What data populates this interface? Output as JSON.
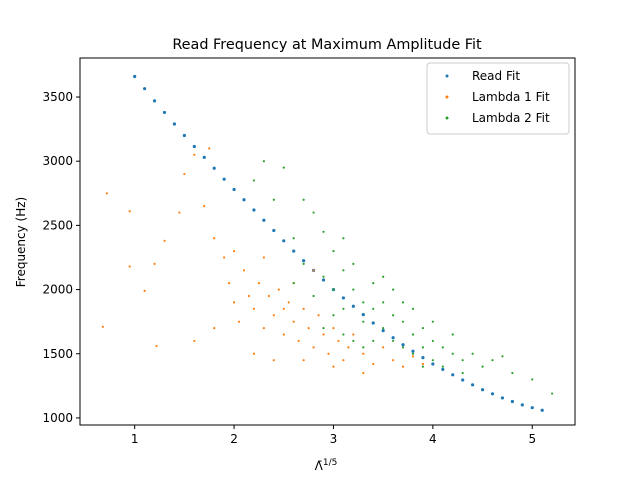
{
  "chart_data": {
    "type": "scatter",
    "title": "Read Frequency at Maximum Amplitude Fit",
    "x_label": "Λ̄",
    "x_label_superscript": "1/5",
    "y_label": "Frequency (Hz)",
    "xlim": [
      0.45,
      5.43
    ],
    "ylim": [
      945,
      3804
    ],
    "xticks": [
      1,
      2,
      3,
      4,
      5
    ],
    "yticks": [
      1000,
      1500,
      2000,
      2500,
      3000,
      3500
    ],
    "legend": "upper right",
    "series": [
      {
        "name": "Read Fit",
        "color": "#1f77b4",
        "x": [
          1.0,
          1.1,
          1.2,
          1.3,
          1.4,
          1.5,
          1.6,
          1.7,
          1.8,
          1.9,
          2.0,
          2.1,
          2.2,
          2.3,
          2.4,
          2.5,
          2.6,
          2.7,
          2.8,
          2.9,
          3.0,
          3.1,
          3.2,
          3.3,
          3.4,
          3.5,
          3.6,
          3.7,
          3.8,
          3.9,
          4.0,
          4.1,
          4.2,
          4.3,
          4.4,
          4.5,
          4.6,
          4.7,
          4.8,
          4.9,
          5.0,
          5.1
        ],
        "values": [
          3660,
          3565,
          3470,
          3380,
          3290,
          3200,
          3115,
          3030,
          2945,
          2860,
          2780,
          2700,
          2620,
          2540,
          2460,
          2380,
          2300,
          2225,
          2150,
          2075,
          2000,
          1935,
          1870,
          1805,
          1740,
          1680,
          1625,
          1570,
          1520,
          1470,
          1420,
          1378,
          1336,
          1296,
          1258,
          1220,
          1188,
          1156,
          1128,
          1102,
          1080,
          1060
        ]
      },
      {
        "name": "Lambda 1 Fit",
        "color": "#ff7f0e",
        "x": [
          0.68,
          0.72,
          0.95,
          0.95,
          1.1,
          1.2,
          1.22,
          1.3,
          1.45,
          1.5,
          1.6,
          1.75,
          1.7,
          1.8,
          1.9,
          1.95,
          2.0,
          2.05,
          2.1,
          2.15,
          2.2,
          2.25,
          2.3,
          2.35,
          2.4,
          2.45,
          2.5,
          2.5,
          2.55,
          2.6,
          2.6,
          2.65,
          2.7,
          2.75,
          2.8,
          2.85,
          2.9,
          2.95,
          3.0,
          3.05,
          3.1,
          3.15,
          3.2,
          3.3,
          3.4,
          3.5,
          3.6,
          3.7,
          3.8,
          3.9,
          2.2,
          2.4,
          2.0,
          1.6,
          2.8,
          3.0,
          2.3,
          1.8,
          2.7,
          3.3
        ],
        "values": [
          1710,
          2750,
          2610,
          2180,
          1990,
          2200,
          1560,
          2380,
          2600,
          2900,
          3050,
          3100,
          2650,
          2400,
          2250,
          2050,
          1900,
          1750,
          2150,
          1950,
          1850,
          2050,
          1700,
          1950,
          1800,
          2000,
          1850,
          1650,
          1900,
          1750,
          2050,
          1600,
          1850,
          1700,
          1550,
          1800,
          1650,
          1500,
          1700,
          1600,
          1450,
          1550,
          1650,
          1500,
          1420,
          1550,
          1450,
          1400,
          1480,
          1420,
          1500,
          1450,
          2300,
          1600,
          2150,
          1400,
          2250,
          1700,
          1450,
          1350
        ]
      },
      {
        "name": "Lambda 2 Fit",
        "color": "#2ca02c",
        "x": [
          2.3,
          2.5,
          2.7,
          2.8,
          2.6,
          2.9,
          3.0,
          3.1,
          3.2,
          2.7,
          2.9,
          3.0,
          3.1,
          3.2,
          3.3,
          3.3,
          3.4,
          3.4,
          3.5,
          3.5,
          3.6,
          3.6,
          3.7,
          3.7,
          3.8,
          3.8,
          3.9,
          3.9,
          4.0,
          4.0,
          4.1,
          4.1,
          4.2,
          4.3,
          4.4,
          4.5,
          4.6,
          4.8,
          5.0,
          5.2,
          3.0,
          3.1,
          3.2,
          2.8,
          2.6,
          3.5,
          3.8,
          4.2,
          3.3,
          3.6,
          2.9,
          4.3,
          4.7,
          2.4,
          2.2,
          3.4,
          3.9,
          4.0,
          3.7,
          3.1
        ],
        "values": [
          3000,
          2950,
          2700,
          2600,
          2400,
          2450,
          2300,
          2400,
          2200,
          2200,
          2100,
          2000,
          1850,
          2000,
          1900,
          1750,
          1850,
          2050,
          1700,
          1900,
          1800,
          1600,
          1750,
          1550,
          1650,
          1500,
          1700,
          1550,
          1600,
          1450,
          1550,
          1400,
          1500,
          1450,
          1500,
          1400,
          1450,
          1350,
          1300,
          1190,
          1800,
          1650,
          1600,
          1950,
          2050,
          2100,
          1850,
          1650,
          1550,
          2000,
          1700,
          1350,
          1480,
          2700,
          2850,
          1600,
          1400,
          1750,
          1900,
          2150
        ]
      }
    ]
  }
}
